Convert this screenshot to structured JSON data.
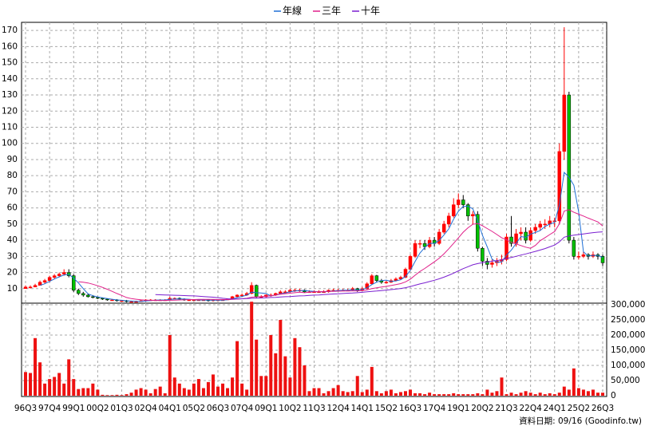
{
  "chart_data": {
    "type": "candlestick",
    "categories": [
      "96Q3",
      null,
      null,
      null,
      null,
      "97Q4",
      null,
      null,
      null,
      null,
      "99Q1",
      null,
      null,
      null,
      null,
      "00Q2",
      null,
      null,
      null,
      null,
      "01Q3",
      null,
      null,
      null,
      null,
      "02Q4",
      null,
      null,
      null,
      null,
      "04Q1",
      null,
      null,
      null,
      null,
      "05Q2",
      null,
      null,
      null,
      null,
      "06Q3",
      null,
      null,
      null,
      null,
      "07Q4",
      null,
      null,
      null,
      null,
      "09Q1",
      null,
      null,
      null,
      null,
      "10Q2",
      null,
      null,
      null,
      null,
      "11Q3",
      null,
      null,
      null,
      null,
      "12Q4",
      null,
      null,
      null,
      null,
      "14Q1",
      null,
      null,
      null,
      null,
      "15Q2",
      null,
      null,
      null,
      null,
      "16Q3",
      null,
      null,
      null,
      null,
      "17Q4",
      null,
      null,
      null,
      null,
      "19Q1",
      null,
      null,
      null,
      null,
      "20Q2",
      null,
      null,
      null,
      null,
      "21Q3",
      null,
      null,
      null,
      null,
      "22Q4",
      null,
      null,
      null,
      null,
      "24Q1",
      null,
      null,
      null,
      null,
      "25Q2",
      null,
      null,
      null,
      null,
      "26Q3"
    ],
    "ohlc": [
      [
        10,
        12,
        10,
        11
      ],
      [
        11,
        12,
        10,
        11
      ],
      [
        11,
        13,
        11,
        12
      ],
      [
        12,
        15,
        12,
        14
      ],
      [
        14,
        16,
        13,
        15
      ],
      [
        15,
        18,
        14,
        17
      ],
      [
        17,
        19,
        16,
        18
      ],
      [
        18,
        20,
        17,
        19
      ],
      [
        19,
        22,
        18,
        20
      ],
      [
        20,
        22,
        17,
        18
      ],
      [
        18,
        19,
        8,
        9
      ],
      [
        9,
        10,
        6,
        7
      ],
      [
        7,
        8,
        5,
        6
      ],
      [
        6,
        7,
        4.5,
        5
      ],
      [
        5,
        6,
        4,
        4.5
      ],
      [
        4.5,
        5,
        3.5,
        4
      ],
      [
        4,
        4.5,
        3,
        3.5
      ],
      [
        3.5,
        4,
        2.5,
        3
      ],
      [
        3,
        3.5,
        2.5,
        3
      ],
      [
        3,
        3.5,
        2,
        2.5
      ],
      [
        2.5,
        3,
        2,
        2.5
      ],
      [
        2.5,
        3,
        1.5,
        2
      ],
      [
        2,
        2.5,
        1.5,
        2
      ],
      [
        2,
        2.5,
        1.5,
        2
      ],
      [
        2,
        3,
        2,
        2.5
      ],
      [
        2.5,
        3.5,
        2,
        3
      ],
      [
        3,
        3.5,
        2.5,
        3
      ],
      [
        3,
        3.5,
        2.5,
        3
      ],
      [
        3,
        3.5,
        2.5,
        3
      ],
      [
        3,
        3.5,
        2.5,
        3
      ],
      [
        3,
        5,
        3,
        4
      ],
      [
        4,
        4.5,
        3.5,
        4
      ],
      [
        4,
        4.5,
        3,
        3.5
      ],
      [
        3.5,
        4,
        2.5,
        3
      ],
      [
        3,
        3.5,
        2.5,
        3
      ],
      [
        3,
        3.5,
        2.5,
        3
      ],
      [
        3,
        3.5,
        2.5,
        3
      ],
      [
        3,
        3.5,
        2.5,
        3
      ],
      [
        3,
        3.5,
        2,
        2.5
      ],
      [
        2.5,
        3.5,
        2,
        3
      ],
      [
        3,
        3.5,
        2.5,
        3
      ],
      [
        3,
        3.5,
        2.5,
        3
      ],
      [
        3,
        4,
        3,
        3.5
      ],
      [
        3.5,
        5.5,
        3.5,
        5
      ],
      [
        5,
        6.5,
        4.5,
        6
      ],
      [
        6,
        7,
        5,
        6
      ],
      [
        6,
        8,
        5.5,
        7
      ],
      [
        7,
        14,
        6.5,
        12
      ],
      [
        12,
        12.5,
        4,
        5
      ],
      [
        5,
        6,
        4,
        5
      ],
      [
        5,
        6.5,
        4.5,
        6
      ],
      [
        6,
        7,
        5,
        6
      ],
      [
        6,
        7.5,
        5.5,
        7
      ],
      [
        7,
        9,
        6.5,
        8
      ],
      [
        8,
        9,
        7,
        8
      ],
      [
        8,
        10,
        7.5,
        9
      ],
      [
        9,
        10,
        8,
        9
      ],
      [
        9,
        10,
        8,
        9
      ],
      [
        9,
        9.5,
        7.5,
        8
      ],
      [
        8,
        9,
        7.5,
        8
      ],
      [
        8,
        9,
        7.5,
        8
      ],
      [
        8,
        9,
        7.5,
        8
      ],
      [
        8,
        9,
        7.5,
        8
      ],
      [
        8,
        9.5,
        7.5,
        9
      ],
      [
        9,
        10,
        8.5,
        9
      ],
      [
        9,
        10,
        8.5,
        9
      ],
      [
        9,
        10,
        8.5,
        9
      ],
      [
        9,
        10,
        8.5,
        9
      ],
      [
        9,
        11,
        8.5,
        10
      ],
      [
        10,
        10.5,
        8,
        9
      ],
      [
        9,
        11,
        8.5,
        10
      ],
      [
        10,
        14,
        9.5,
        13
      ],
      [
        13,
        19,
        12.5,
        18
      ],
      [
        18,
        18.5,
        14,
        15
      ],
      [
        15,
        16,
        13,
        14
      ],
      [
        14,
        15,
        13,
        14
      ],
      [
        14,
        16,
        13.5,
        15
      ],
      [
        15,
        17,
        14.5,
        16
      ],
      [
        16,
        18,
        15.5,
        17
      ],
      [
        17,
        23,
        16.5,
        22
      ],
      [
        22,
        31,
        21,
        30
      ],
      [
        30,
        40,
        29,
        38
      ],
      [
        38,
        40,
        35,
        38
      ],
      [
        38,
        40,
        34,
        36
      ],
      [
        36,
        42,
        35,
        40
      ],
      [
        40,
        42,
        36,
        38
      ],
      [
        38,
        47,
        37,
        45
      ],
      [
        45,
        52,
        44,
        50
      ],
      [
        50,
        57,
        48,
        55
      ],
      [
        55,
        66,
        54,
        62
      ],
      [
        62,
        69,
        60,
        65
      ],
      [
        65,
        68,
        60,
        62
      ],
      [
        62,
        63,
        52,
        55
      ],
      [
        55,
        58,
        50,
        56
      ],
      [
        56,
        58,
        33,
        35
      ],
      [
        35,
        36,
        24,
        27
      ],
      [
        27,
        29,
        22,
        25
      ],
      [
        25,
        28,
        23,
        26
      ],
      [
        26,
        29,
        24,
        27
      ],
      [
        27,
        31,
        25,
        28
      ],
      [
        28,
        44,
        27,
        42
      ],
      [
        42,
        55,
        36,
        38
      ],
      [
        38,
        47,
        36,
        44
      ],
      [
        44,
        48,
        40,
        45
      ],
      [
        45,
        48,
        38,
        40
      ],
      [
        40,
        48,
        39,
        46
      ],
      [
        46,
        50,
        44,
        48
      ],
      [
        48,
        52,
        46,
        50
      ],
      [
        50,
        53,
        47,
        50
      ],
      [
        50,
        55,
        48,
        52
      ],
      [
        52,
        54,
        48,
        52
      ],
      [
        52,
        100,
        50,
        95
      ],
      [
        95,
        172,
        90,
        130
      ],
      [
        130,
        132,
        38,
        40
      ],
      [
        40,
        42,
        28,
        30
      ],
      [
        30,
        33,
        28,
        30
      ],
      [
        30,
        33,
        29,
        31
      ],
      [
        31,
        32,
        28,
        30
      ],
      [
        30,
        33,
        29,
        31
      ],
      [
        31,
        32,
        28,
        30
      ],
      [
        30,
        31,
        24,
        26
      ]
    ],
    "up_color": "#ff0000",
    "down_color": "#00c000",
    "series": [
      {
        "name": "年線",
        "color": "#1f6fd6",
        "values": [
          null,
          null,
          null,
          12,
          13,
          14.5,
          16,
          17.3,
          18.5,
          18.8,
          16.5,
          13.5,
          10,
          6.8,
          5.6,
          4.9,
          4.3,
          3.8,
          3.4,
          3,
          2.8,
          2.5,
          2.3,
          2.1,
          2.1,
          2.4,
          2.6,
          2.9,
          3,
          3,
          3.3,
          3.5,
          3.6,
          3.6,
          3.4,
          3.1,
          3,
          3,
          2.9,
          2.9,
          2.9,
          2.9,
          3.1,
          3.6,
          4.4,
          5.1,
          6,
          7.8,
          7.5,
          7.3,
          7,
          5.5,
          6,
          6.8,
          7.3,
          8,
          8.5,
          8.8,
          8.8,
          8.5,
          8.3,
          8,
          8,
          8.3,
          8.5,
          8.8,
          9,
          9,
          9.3,
          9.3,
          9.5,
          10.5,
          12.5,
          14,
          15,
          15.3,
          14.5,
          14.8,
          15.5,
          17.5,
          21.3,
          26.8,
          32,
          35.5,
          38,
          38,
          39.8,
          43.3,
          47,
          53,
          58,
          61,
          61,
          59.5,
          52,
          43,
          35.8,
          28.3,
          26.3,
          26.5,
          30.8,
          33.8,
          38,
          42.3,
          41.8,
          43.8,
          44.8,
          46,
          48.5,
          50,
          51,
          62,
          82,
          79,
          74,
          57.5,
          32.8,
          30.3,
          30.5,
          30.5,
          29.3
        ]
      },
      {
        "name": "三年",
        "color": "#e0208a",
        "values": [
          null,
          null,
          null,
          null,
          null,
          null,
          null,
          null,
          null,
          null,
          null,
          14.3,
          14,
          13.5,
          12.7,
          11.8,
          10.8,
          9.6,
          8.3,
          7,
          5.8,
          4.5,
          3.8,
          3.4,
          3.1,
          2.9,
          2.8,
          2.7,
          2.7,
          2.7,
          2.8,
          2.9,
          3,
          3.1,
          3.2,
          3.2,
          3.3,
          3.3,
          3.3,
          3.3,
          3.2,
          3.2,
          3.2,
          3.3,
          3.5,
          3.7,
          4,
          4.7,
          4.9,
          5.1,
          5.4,
          5.6,
          6,
          6.5,
          6.9,
          7.2,
          7.5,
          7.8,
          7.5,
          7.8,
          8,
          8.1,
          8.2,
          8.3,
          8.3,
          8.4,
          8.5,
          8.5,
          8.6,
          8.6,
          8.8,
          9.2,
          10,
          10.5,
          11,
          11.4,
          11.9,
          12.5,
          13.1,
          14.2,
          15.9,
          18.3,
          20.6,
          22.5,
          24.6,
          26.6,
          28.8,
          31.6,
          34.7,
          38,
          41.5,
          45,
          47.7,
          49.9,
          50.3,
          49,
          47.2,
          45.5,
          43.5,
          41.5,
          40.3,
          38.7,
          37.7,
          36.7,
          35.7,
          35,
          36.8,
          39.7,
          41.6,
          43.5,
          45.4,
          50.2,
          58.1,
          58.9,
          57.3,
          56.1,
          55,
          53.7,
          52.5,
          51.3,
          48.8
        ]
      },
      {
        "name": "十年",
        "color": "#7a1fd0",
        "values": [
          null,
          null,
          null,
          null,
          null,
          null,
          null,
          null,
          null,
          null,
          null,
          null,
          null,
          null,
          null,
          null,
          null,
          null,
          null,
          null,
          null,
          null,
          null,
          null,
          null,
          null,
          null,
          6.3,
          6.2,
          6.1,
          6,
          5.9,
          5.8,
          5.7,
          5.6,
          5.5,
          5.3,
          5.1,
          4.9,
          4.7,
          4.4,
          4,
          3.7,
          3.6,
          3.6,
          3.7,
          3.8,
          4,
          4.1,
          4.2,
          4.3,
          4.5,
          4.6,
          4.8,
          5,
          5.1,
          5.3,
          5.5,
          5.6,
          5.8,
          6,
          6.1,
          6.3,
          6.5,
          6.7,
          6.8,
          7,
          7.2,
          7.3,
          7.5,
          7.7,
          8,
          8.3,
          8.5,
          8.8,
          9.1,
          9.4,
          9.7,
          10.1,
          10.6,
          11.3,
          12.1,
          12.9,
          13.6,
          14.4,
          15.2,
          16.1,
          17.1,
          18.3,
          19.6,
          21,
          22.4,
          23.6,
          24.8,
          25.5,
          26.1,
          26.5,
          27,
          27.4,
          27.9,
          28.7,
          29.3,
          30,
          30.8,
          31.5,
          32.3,
          33.1,
          33.9,
          34.8,
          35.9,
          37,
          39,
          41.9,
          42.6,
          43.1,
          43.5,
          43.9,
          44.3,
          44.7,
          45,
          45.2
        ]
      }
    ],
    "volume": [
      78000,
      75000,
      190000,
      110000,
      40000,
      55000,
      62000,
      75000,
      40000,
      120000,
      55000,
      22000,
      25000,
      25000,
      40000,
      20000,
      3000,
      2000,
      2000,
      3000,
      2000,
      5000,
      10000,
      20000,
      25000,
      20000,
      8000,
      22000,
      30000,
      8000,
      200000,
      60000,
      40000,
      25000,
      20000,
      40000,
      55000,
      25000,
      45000,
      70000,
      30000,
      40000,
      25000,
      60000,
      180000,
      40000,
      20000,
      310000,
      185000,
      65000,
      65000,
      200000,
      140000,
      250000,
      130000,
      60000,
      190000,
      160000,
      100000,
      15000,
      25000,
      25000,
      8000,
      15000,
      25000,
      35000,
      15000,
      12000,
      15000,
      65000,
      12000,
      20000,
      95000,
      15000,
      8000,
      15000,
      20000,
      8000,
      12000,
      15000,
      20000,
      8000,
      8000,
      5000,
      10000,
      5000,
      5000,
      5000,
      5000,
      8000,
      5000,
      5000,
      5000,
      5000,
      8000,
      5000,
      20000,
      10000,
      15000,
      60000,
      5000,
      10000,
      5000,
      10000,
      15000,
      10000,
      5000,
      10000,
      5000,
      8000,
      5000,
      10000,
      30000,
      20000,
      90000,
      25000,
      20000,
      15000,
      20000,
      10000,
      10000
    ],
    "volume_color": "#ee1111",
    "ylim": [
      1,
      175
    ],
    "yticks": [
      10,
      20,
      30,
      40,
      50,
      60,
      70,
      80,
      90,
      100,
      110,
      120,
      130,
      140,
      150,
      160,
      170
    ],
    "y2lim": [
      0,
      300000
    ],
    "y2ticks": [
      0,
      {
        "value": 50000,
        "label": "50,000"
      },
      {
        "value": 100000,
        "label": "100,000"
      },
      {
        "value": 150000,
        "label": "150,000"
      },
      {
        "value": 200000,
        "label": "200,000"
      },
      {
        "value": 250000,
        "label": "250,000"
      },
      {
        "value": 300000,
        "label": "300,000"
      }
    ],
    "grid": true,
    "legend": "top",
    "footnote": "資料日期: 09/16 (Goodinfo.tw)"
  }
}
